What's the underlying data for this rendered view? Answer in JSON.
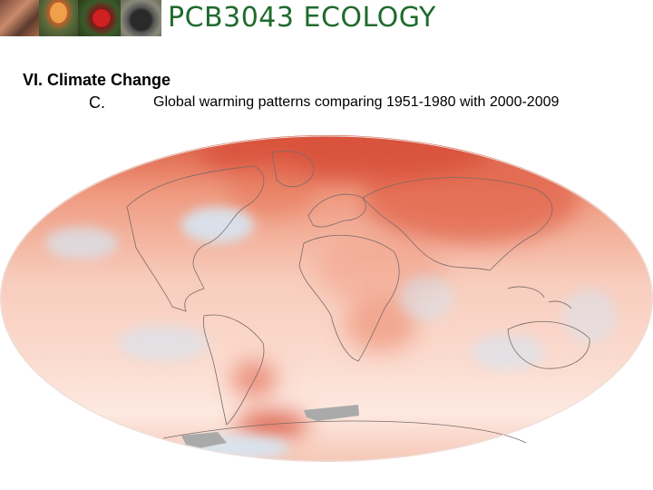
{
  "header": {
    "title": "PCB3043  ECOLOGY",
    "photos": [
      "moth-photo",
      "mushroom-photo",
      "flower-photo",
      "beetle-photo"
    ]
  },
  "outline": {
    "section": "VI.  Climate Change",
    "letter": "C.",
    "subtitle": "Global warming patterns comparing 1951-1980 with 2000-2009"
  },
  "map": {
    "projection": "mollweide",
    "colors": {
      "warm": "#d9553c",
      "mild": "#f6c7b5",
      "neutral": "#ffffff",
      "cool": "#cfe0ef",
      "no_data": "#aaaaaa"
    }
  }
}
